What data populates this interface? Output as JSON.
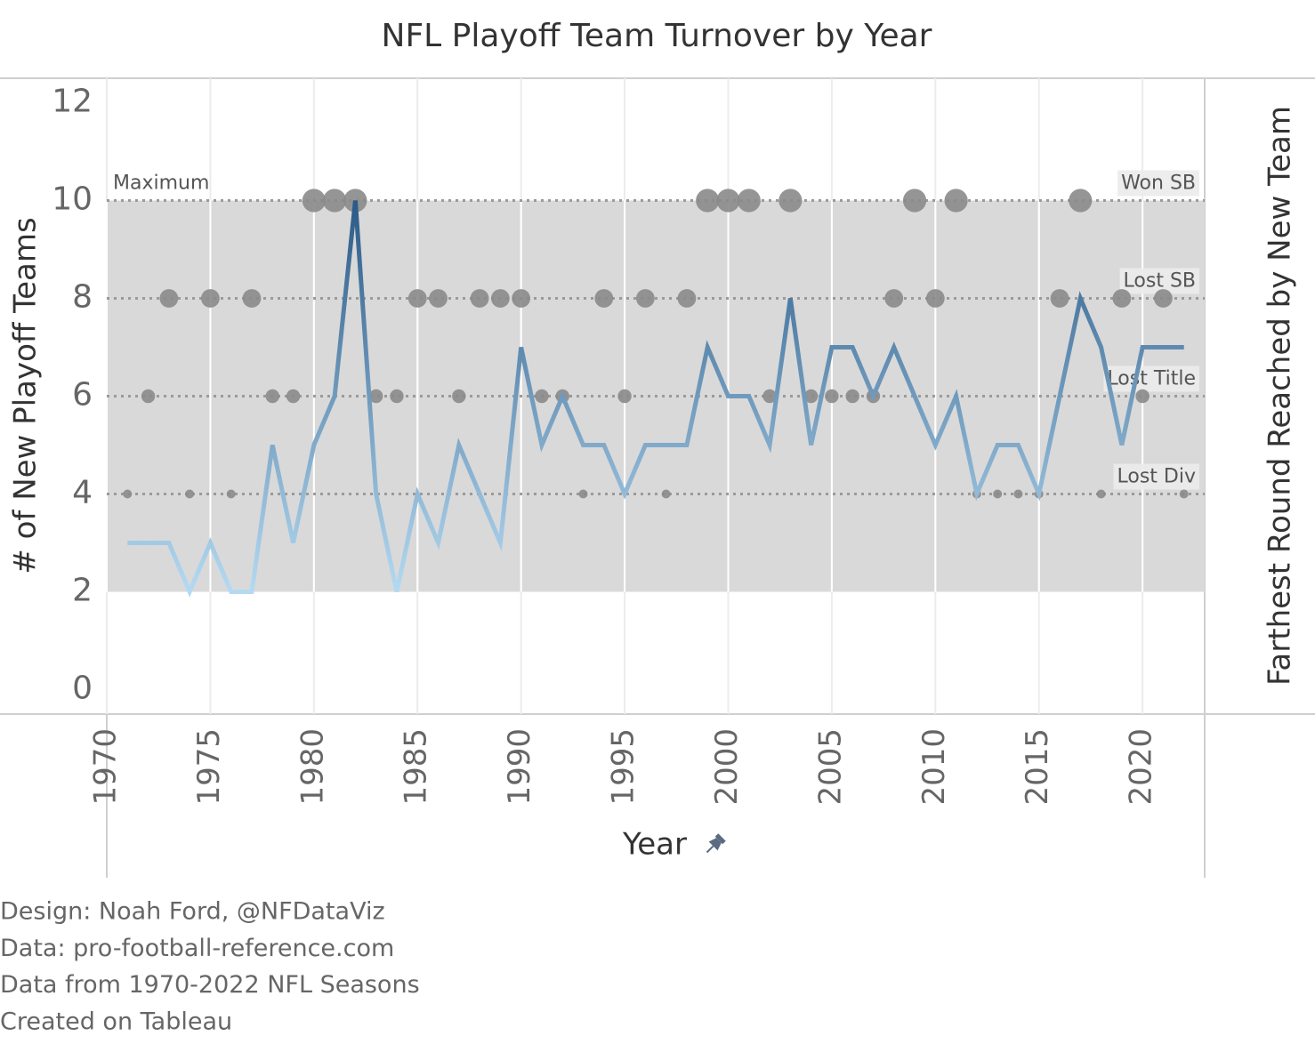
{
  "chart_data": {
    "type": "line",
    "title": "NFL Playoff Team Turnover by Year",
    "xlabel": "Year",
    "ylabel": "# of New Playoff Teams",
    "y2label": "Farthest Round Reached by New Team",
    "x": [
      1971,
      1972,
      1973,
      1974,
      1975,
      1976,
      1977,
      1978,
      1979,
      1980,
      1981,
      1982,
      1983,
      1984,
      1985,
      1986,
      1987,
      1988,
      1989,
      1990,
      1991,
      1992,
      1993,
      1994,
      1995,
      1996,
      1997,
      1998,
      1999,
      2000,
      2001,
      2002,
      2003,
      2004,
      2005,
      2006,
      2007,
      2008,
      2009,
      2010,
      2011,
      2012,
      2013,
      2014,
      2015,
      2016,
      2017,
      2018,
      2019,
      2020,
      2021,
      2022
    ],
    "values": [
      3,
      3,
      3,
      2,
      3,
      2,
      2,
      5,
      3,
      5,
      6,
      10,
      4,
      2,
      4,
      3,
      5,
      4,
      3,
      7,
      5,
      6,
      5,
      5,
      4,
      5,
      5,
      5,
      7,
      6,
      6,
      5,
      8,
      5,
      7,
      7,
      6,
      7,
      6,
      5,
      6,
      4,
      5,
      5,
      4,
      6,
      8,
      7,
      5,
      7,
      7,
      7
    ],
    "y2_values": [
      4,
      6,
      8,
      4,
      8,
      4,
      8,
      6,
      6,
      10,
      10,
      10,
      6,
      6,
      8,
      8,
      6,
      8,
      8,
      8,
      6,
      6,
      4,
      8,
      6,
      8,
      4,
      8,
      10,
      10,
      10,
      6,
      10,
      6,
      6,
      6,
      6,
      8,
      10,
      8,
      10,
      4,
      4,
      4,
      4,
      8,
      10,
      4,
      8,
      6,
      8,
      4
    ],
    "line_colors": [
      "#b4daf2",
      "#2b5a87"
    ],
    "dot_color": "#8a8a8a",
    "band_color": "#d9d9d9",
    "band_label": "Maximum",
    "xlim": [
      1970,
      2023
    ],
    "xticks": [
      1970,
      1975,
      1980,
      1985,
      1990,
      1995,
      2000,
      2005,
      2010,
      2015,
      2020
    ],
    "ylim": [
      -0.5,
      12.5
    ],
    "yticks": [
      0,
      2,
      4,
      6,
      8,
      10,
      12
    ],
    "y2lim": [
      -0.5,
      12.5
    ],
    "y2ticks": [
      {
        "value": 4,
        "label": "Lost Div"
      },
      {
        "value": 6,
        "label": "Lost Title"
      },
      {
        "value": 8,
        "label": "Lost SB"
      },
      {
        "value": 10,
        "label": "Won SB"
      }
    ],
    "grid": true,
    "footer": [
      "Design: Noah Ford, @NFDataViz",
      "Data: pro-football-reference.com",
      "Data from 1970-2022 NFL Seasons",
      "Created on Tableau"
    ]
  }
}
